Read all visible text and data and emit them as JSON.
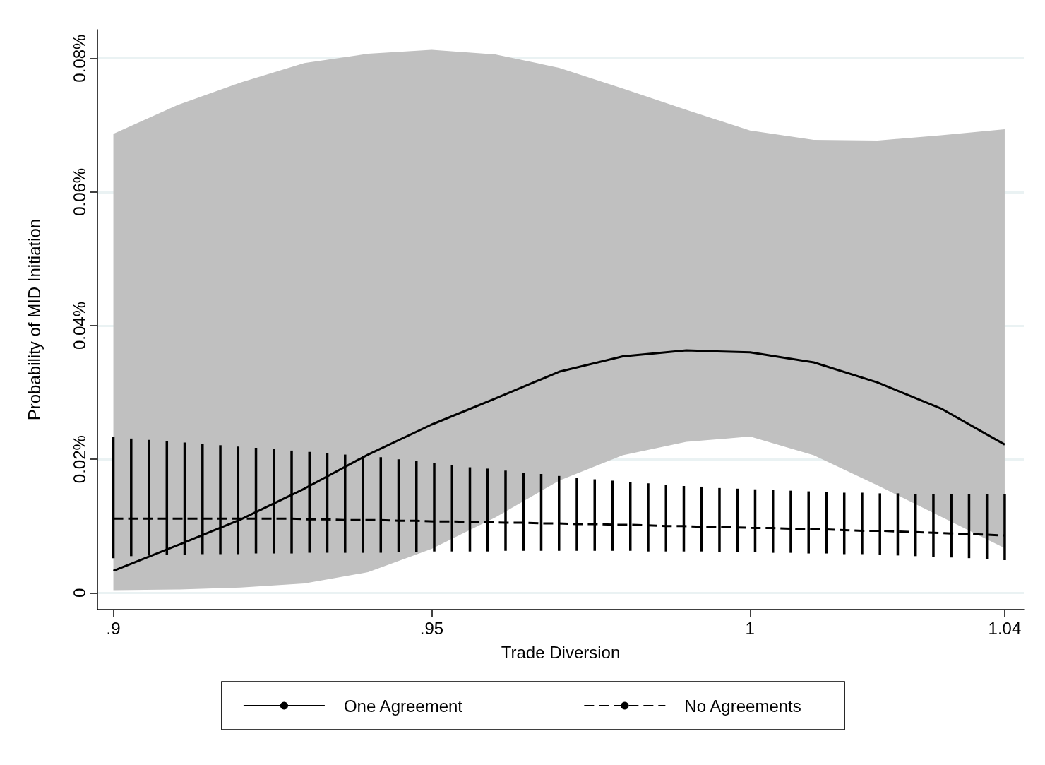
{
  "chart_data": {
    "type": "line",
    "xlabel": "Trade Diversion",
    "ylabel": "Probability of MID Initiation",
    "xlim": [
      0.8975,
      1.043
    ],
    "xticks": [
      {
        "value": 0.9,
        "label": ".9"
      },
      {
        "value": 0.95,
        "label": ".95"
      },
      {
        "value": 1,
        "label": "1"
      },
      {
        "value": 1.04,
        "label": "1.04"
      }
    ],
    "ylim": [
      -0.0025,
      0.0843
    ],
    "yticks": [
      {
        "value": 0,
        "label": "0"
      },
      {
        "value": 0.02,
        "label": "0.02%"
      },
      {
        "value": 0.04,
        "label": "0.04%"
      },
      {
        "value": 0.06,
        "label": "0.06%"
      },
      {
        "value": 0.08,
        "label": "0.08%"
      }
    ],
    "grid": "y",
    "legend": "bottom",
    "marker": "none",
    "series": [
      {
        "name": "One Agreement",
        "color": "#000000",
        "line_style": "solid",
        "x": [
          0.9,
          0.91,
          0.92,
          0.93,
          0.94,
          0.95,
          0.96,
          0.97,
          0.98,
          0.99,
          1.0,
          1.01,
          1.02,
          1.03,
          1.04
        ],
        "values": [
          0.0033,
          0.0071,
          0.011,
          0.0156,
          0.0207,
          0.0252,
          0.0291,
          0.0331,
          0.0354,
          0.0363,
          0.036,
          0.0345,
          0.0315,
          0.0276,
          0.0222
        ],
        "lower": [
          0.0004,
          0.0005,
          0.0008,
          0.0014,
          0.0031,
          0.0066,
          0.0113,
          0.0168,
          0.0206,
          0.0226,
          0.0234,
          0.0206,
          0.0161,
          0.0114,
          0.0067
        ],
        "upper": [
          0.0687,
          0.073,
          0.0764,
          0.0793,
          0.0807,
          0.0813,
          0.0806,
          0.0786,
          0.0755,
          0.0723,
          0.0692,
          0.0678,
          0.0677,
          0.0685,
          0.0694
        ]
      },
      {
        "name": "No Agreements",
        "color": "#000000",
        "line_style": "dashed",
        "x": [
          0.9,
          0.9028,
          0.9056,
          0.9084,
          0.9112,
          0.914,
          0.9168,
          0.9196,
          0.9224,
          0.9252,
          0.928,
          0.9308,
          0.9336,
          0.9364,
          0.9392,
          0.942,
          0.9448,
          0.9476,
          0.9504,
          0.9532,
          0.956,
          0.9588,
          0.9616,
          0.9644,
          0.9672,
          0.97,
          0.9728,
          0.9756,
          0.9784,
          0.9812,
          0.984,
          0.9868,
          0.9896,
          0.9924,
          0.9952,
          0.998,
          1.0008,
          1.0036,
          1.0064,
          1.0092,
          1.012,
          1.0148,
          1.0176,
          1.0204,
          1.0232,
          1.026,
          1.0288,
          1.0316,
          1.0344,
          1.0372,
          1.04
        ],
        "values": [
          0.0111,
          0.0111,
          0.0111,
          0.0111,
          0.0111,
          0.0111,
          0.0111,
          0.0111,
          0.0111,
          0.0111,
          0.0111,
          0.011,
          0.011,
          0.0109,
          0.0109,
          0.0109,
          0.0108,
          0.0108,
          0.0107,
          0.0107,
          0.0106,
          0.0106,
          0.0105,
          0.0105,
          0.0104,
          0.0104,
          0.0103,
          0.0103,
          0.0102,
          0.0102,
          0.0101,
          0.01,
          0.01,
          0.0099,
          0.0099,
          0.0098,
          0.0097,
          0.0097,
          0.0096,
          0.0095,
          0.0095,
          0.0094,
          0.0093,
          0.0093,
          0.0092,
          0.0091,
          0.009,
          0.0089,
          0.0088,
          0.0087,
          0.0086
        ],
        "errors": [
          [
            0.0052,
            0.0233
          ],
          [
            0.0055,
            0.0231
          ],
          [
            0.0056,
            0.0229
          ],
          [
            0.0057,
            0.0227
          ],
          [
            0.0057,
            0.0225
          ],
          [
            0.0058,
            0.0223
          ],
          [
            0.0058,
            0.0221
          ],
          [
            0.0058,
            0.0219
          ],
          [
            0.0059,
            0.0217
          ],
          [
            0.0059,
            0.0215
          ],
          [
            0.0059,
            0.0213
          ],
          [
            0.006,
            0.0211
          ],
          [
            0.006,
            0.0209
          ],
          [
            0.006,
            0.0207
          ],
          [
            0.006,
            0.0205
          ],
          [
            0.006,
            0.0203
          ],
          [
            0.0061,
            0.02
          ],
          [
            0.0061,
            0.0197
          ],
          [
            0.0062,
            0.0194
          ],
          [
            0.0062,
            0.0191
          ],
          [
            0.0062,
            0.0188
          ],
          [
            0.0062,
            0.0186
          ],
          [
            0.0063,
            0.0183
          ],
          [
            0.0063,
            0.018
          ],
          [
            0.0063,
            0.0178
          ],
          [
            0.0063,
            0.0175
          ],
          [
            0.0063,
            0.0172
          ],
          [
            0.0063,
            0.017
          ],
          [
            0.0063,
            0.0168
          ],
          [
            0.0063,
            0.0166
          ],
          [
            0.0062,
            0.0164
          ],
          [
            0.0062,
            0.0162
          ],
          [
            0.0062,
            0.016
          ],
          [
            0.0062,
            0.0159
          ],
          [
            0.0061,
            0.0157
          ],
          [
            0.0061,
            0.0156
          ],
          [
            0.0061,
            0.0155
          ],
          [
            0.006,
            0.0154
          ],
          [
            0.006,
            0.0153
          ],
          [
            0.0059,
            0.0152
          ],
          [
            0.0059,
            0.0151
          ],
          [
            0.0058,
            0.015
          ],
          [
            0.0058,
            0.015
          ],
          [
            0.0057,
            0.0149
          ],
          [
            0.0056,
            0.0149
          ],
          [
            0.0055,
            0.0148
          ],
          [
            0.0054,
            0.0148
          ],
          [
            0.0053,
            0.0148
          ],
          [
            0.0052,
            0.0148
          ],
          [
            0.0051,
            0.0148
          ],
          [
            0.0049,
            0.0148
          ]
        ]
      }
    ]
  }
}
